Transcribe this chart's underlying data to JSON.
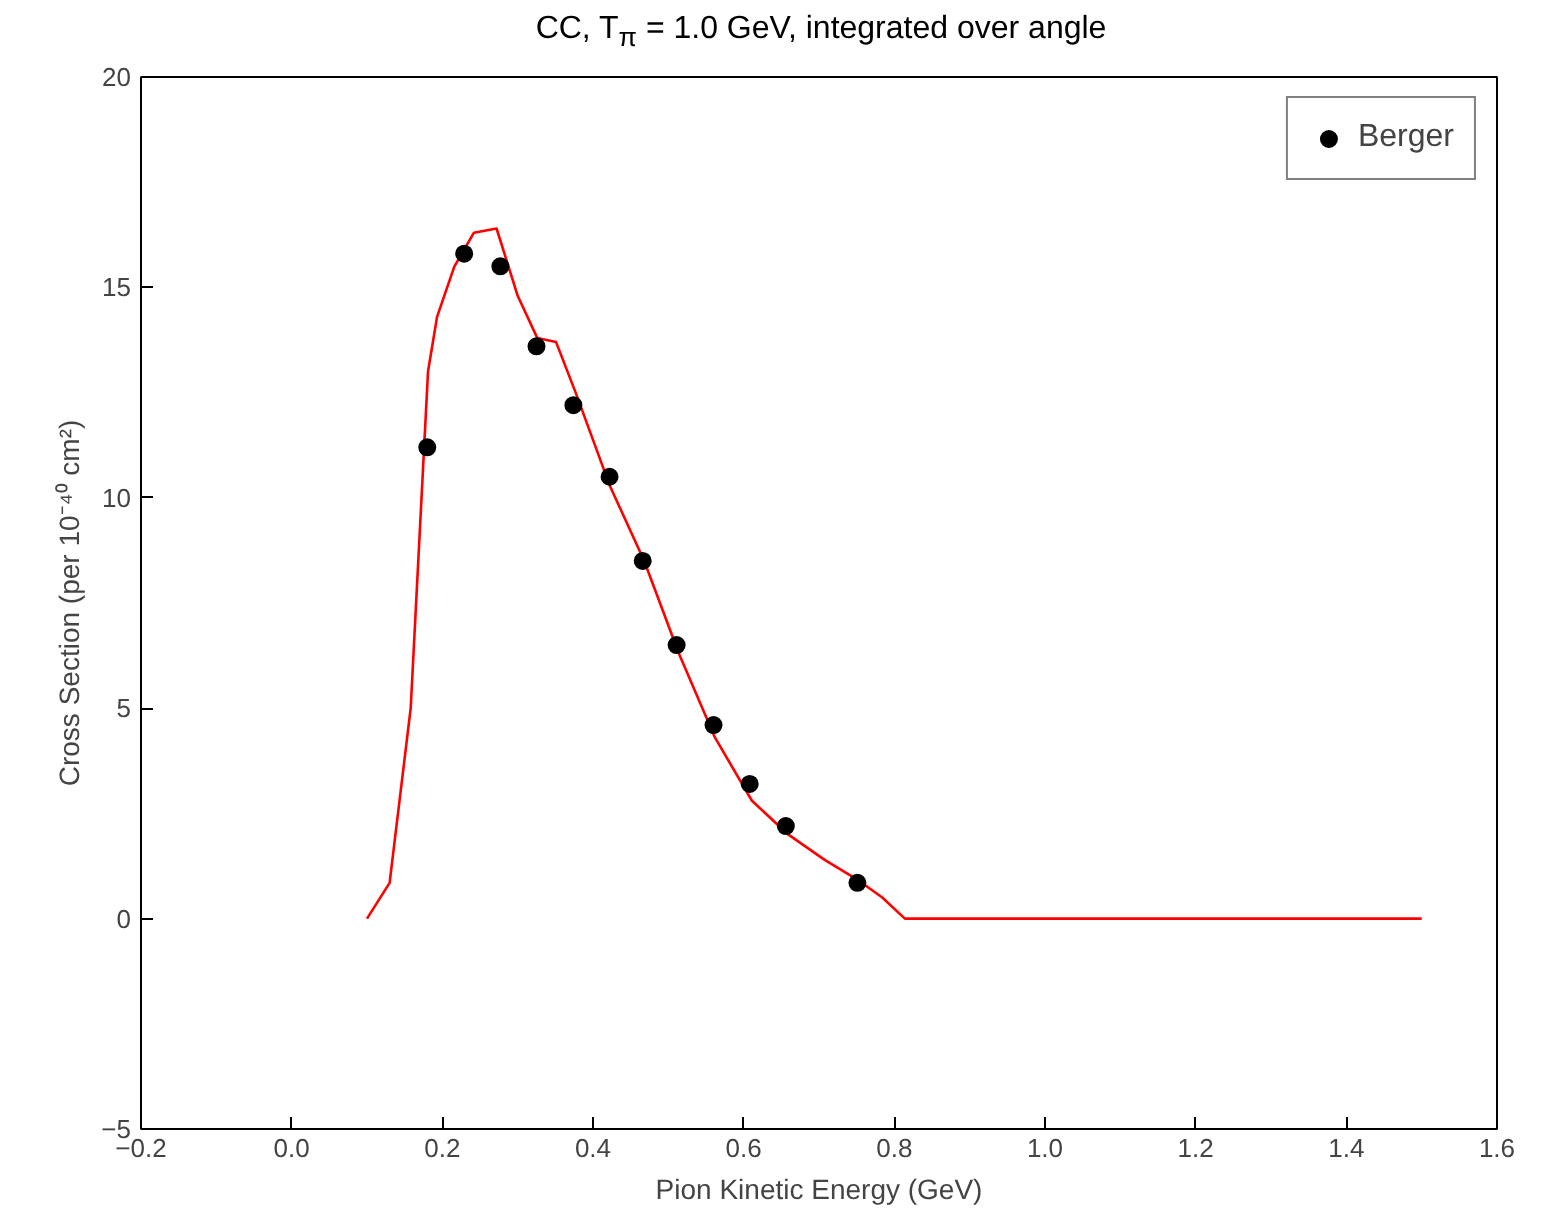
{
  "chart_data": {
    "type": "line",
    "title": "CC, T$_{π}$ = 1.0 GeV, integrated over angle",
    "xlabel": "Pion Kinetic Energy (GeV)",
    "ylabel": "Cross Section (per 10⁻⁴⁰ cm²)",
    "xlim": [
      -0.2,
      1.6
    ],
    "ylim": [
      -5,
      20
    ],
    "xticks": [
      {
        "value": -0.2,
        "label": "−0.2"
      },
      {
        "value": 0,
        "label": "0.0"
      },
      {
        "value": 0.2,
        "label": "0.2"
      },
      {
        "value": 0.4,
        "label": "0.4"
      },
      {
        "value": 0.6,
        "label": "0.6"
      },
      {
        "value": 0.8,
        "label": "0.8"
      },
      {
        "value": 1,
        "label": "1.0"
      },
      {
        "value": 1.2,
        "label": "1.2"
      },
      {
        "value": 1.4,
        "label": "1.4"
      },
      {
        "value": 1.6,
        "label": "1.6"
      }
    ],
    "yticks": [
      {
        "value": -5,
        "label": "−5"
      },
      0,
      5,
      10,
      15,
      20
    ],
    "grid": false,
    "legend": "top right",
    "series": [
      {
        "color": "#ff0000",
        "marker": "none",
        "x": [
          0.1,
          0.13,
          0.158,
          0.181,
          0.193,
          0.216,
          0.242,
          0.272,
          0.3,
          0.326,
          0.351,
          0.377,
          0.422,
          0.468,
          0.514,
          0.562,
          0.611,
          0.659,
          0.707,
          0.753,
          0.784,
          0.814,
          0.842,
          1.5
        ],
        "values": [
          0,
          0.85,
          5,
          13,
          14.3,
          15.5,
          16.3,
          16.4,
          14.8,
          13.8,
          13.7,
          12.5,
          10.3,
          8.5,
          6.3,
          4.3,
          2.8,
          2.0,
          1.4,
          0.9,
          0.5,
          0.0,
          0,
          0
        ]
      },
      {
        "type": "scatter",
        "name": "Berger",
        "color": "#000000",
        "marker": "circle",
        "x": [
          0.18,
          0.229,
          0.277,
          0.325,
          0.374,
          0.422,
          0.466,
          0.511,
          0.56,
          0.608,
          0.656,
          0.751
        ],
        "values": [
          11.2,
          15.8,
          15.5,
          13.6,
          12.2,
          10.5,
          8.5,
          6.5,
          4.6,
          3.2,
          2.2,
          0.85
        ]
      }
    ]
  }
}
